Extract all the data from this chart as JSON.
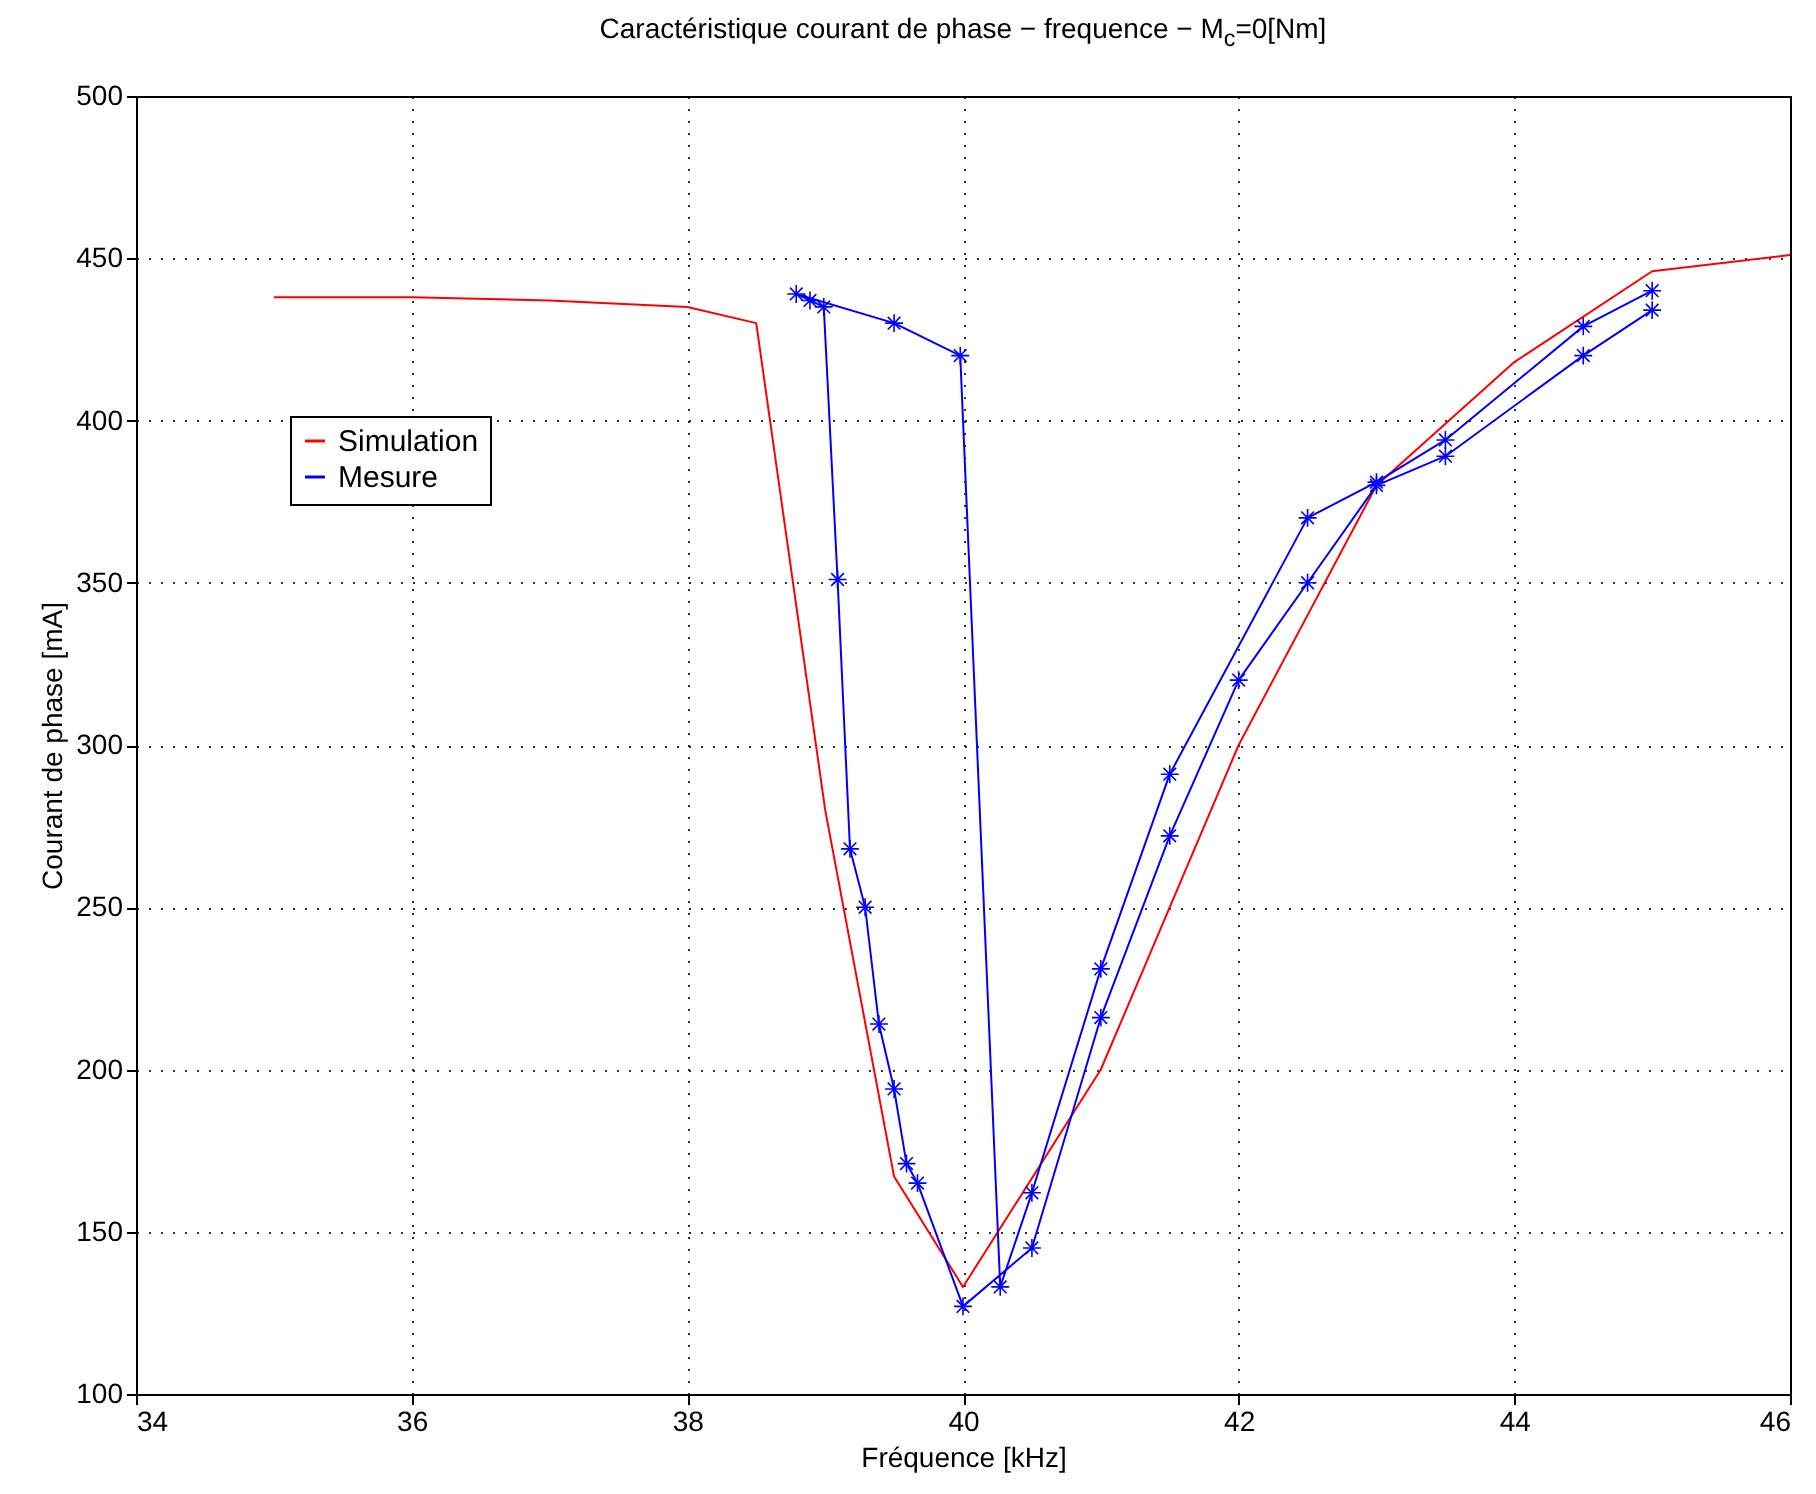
{
  "chart_data": {
    "type": "line",
    "title": "Caractéristique courant de phase − frequence − M$_{c}$=0[Nm]",
    "xlabel": "Fréquence [kHz]",
    "ylabel": "Courant de phase [mA]",
    "xlim": [
      34,
      46
    ],
    "xticks": [
      34,
      36,
      38,
      40,
      42,
      44,
      46
    ],
    "ylim": [
      100,
      500
    ],
    "yticks": [
      100,
      150,
      200,
      250,
      300,
      350,
      400,
      450,
      500
    ],
    "grid": true,
    "legend": "top left",
    "series": [
      {
        "name": "Simulation",
        "color": "#ff0000",
        "marker": "none",
        "x": [
          35,
          36,
          37,
          38,
          38.5,
          39,
          39.5,
          40,
          41,
          42,
          43,
          44,
          45,
          46
        ],
        "values": [
          438,
          438,
          437,
          435,
          430,
          280,
          167,
          133,
          200,
          300,
          380,
          418,
          446,
          451
        ]
      },
      {
        "name": "Mesure",
        "color": "#0000ff",
        "marker": "star",
        "x": [
          45,
          44.5,
          43.5,
          43,
          42.5,
          42,
          41.5,
          41,
          40.5,
          40,
          39.67,
          39.59,
          39.5,
          39.39,
          39.29,
          39.18,
          39.09,
          38.99,
          38.89,
          38.79,
          39.5,
          39.98,
          40.27,
          40.5,
          41,
          41.5,
          42.5,
          43,
          43.5,
          44.5,
          45
        ],
        "values": [
          434,
          420,
          389,
          380,
          350,
          320,
          272,
          216,
          145,
          127,
          165,
          171,
          194,
          214,
          250,
          268,
          351,
          435,
          437,
          439,
          430,
          420,
          133,
          162,
          231,
          291,
          370,
          381,
          394,
          429,
          440
        ]
      }
    ]
  }
}
